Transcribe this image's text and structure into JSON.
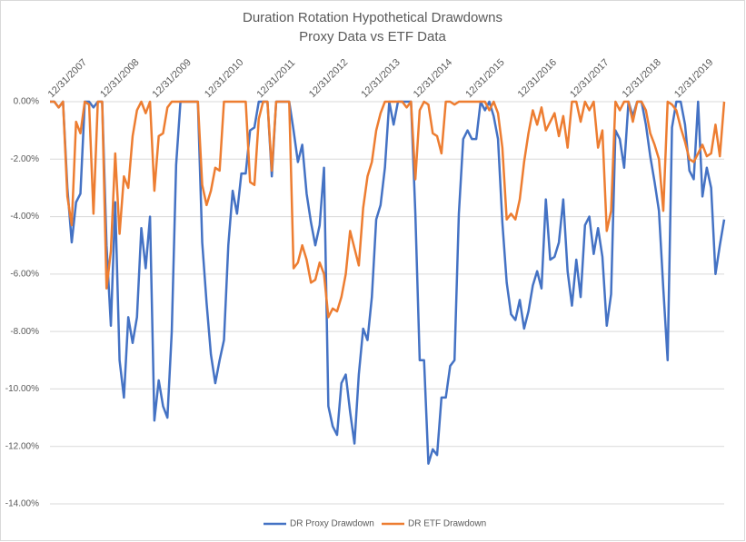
{
  "chart_data": {
    "type": "line",
    "title": "Duration Rotation Hypothetical Drawdowns",
    "subtitle": "Proxy Data vs ETF Data",
    "categories": [
      "12/31/2007",
      null,
      null,
      null,
      null,
      null,
      null,
      null,
      null,
      null,
      null,
      null,
      "12/31/2008",
      null,
      null,
      null,
      null,
      null,
      null,
      null,
      null,
      null,
      null,
      null,
      "12/31/2009",
      null,
      null,
      null,
      null,
      null,
      null,
      null,
      null,
      null,
      null,
      null,
      "12/31/2010",
      null,
      null,
      null,
      null,
      null,
      null,
      null,
      null,
      null,
      null,
      null,
      "12/31/2011",
      null,
      null,
      null,
      null,
      null,
      null,
      null,
      null,
      null,
      null,
      null,
      "12/31/2012",
      null,
      null,
      null,
      null,
      null,
      null,
      null,
      null,
      null,
      null,
      null,
      "12/31/2013",
      null,
      null,
      null,
      null,
      null,
      null,
      null,
      null,
      null,
      null,
      null,
      "12/31/2014",
      null,
      null,
      null,
      null,
      null,
      null,
      null,
      null,
      null,
      null,
      null,
      "12/31/2015",
      null,
      null,
      null,
      null,
      null,
      null,
      null,
      null,
      null,
      null,
      null,
      "12/31/2016",
      null,
      null,
      null,
      null,
      null,
      null,
      null,
      null,
      null,
      null,
      null,
      "12/31/2017",
      null,
      null,
      null,
      null,
      null,
      null,
      null,
      null,
      null,
      null,
      null,
      "12/31/2018",
      null,
      null,
      null,
      null,
      null,
      null,
      null,
      null,
      null,
      null,
      null,
      "12/31/2019",
      null,
      null,
      null,
      null,
      null,
      null,
      null,
      null,
      null,
      null,
      null
    ],
    "series": [
      {
        "name": "DR Proxy Drawdown",
        "color": "#4472c4",
        "values": [
          0,
          0,
          -0.2,
          0,
          -3.0,
          -4.9,
          -3.5,
          -3.2,
          0,
          0,
          -0.2,
          0,
          0,
          -5,
          -7.8,
          -3.5,
          -9,
          -10.3,
          -7.5,
          -8.4,
          -7.5,
          -4.4,
          -5.8,
          -4.0,
          -11.1,
          -9.7,
          -10.6,
          -11.0,
          -8,
          -2.2,
          0,
          0,
          0,
          0,
          0,
          -4.9,
          -7,
          -8.8,
          -9.8,
          -9,
          -8.3,
          -5,
          -3.1,
          -3.9,
          -2.5,
          -2.5,
          -1,
          -0.9,
          0,
          0,
          0,
          -2.6,
          0,
          0,
          0,
          0,
          -1,
          -2.1,
          -1.5,
          -3.2,
          -4.2,
          -5.0,
          -4.3,
          -2.3,
          -10.6,
          -11.3,
          -11.6,
          -9.8,
          -9.5,
          -10.8,
          -11.9,
          -9.5,
          -7.9,
          -8.3,
          -6.8,
          -4.1,
          -3.6,
          -2.3,
          0,
          -0.8,
          0,
          0,
          0,
          0,
          -3.9,
          -9,
          -9,
          -12.6,
          -12.1,
          -12.3,
          -10.3,
          -10.3,
          -9.2,
          -9,
          -3.9,
          -1.3,
          -1,
          -1.3,
          -1.3,
          0,
          -0.3,
          0,
          -0.5,
          -1.3,
          -4.2,
          -6.3,
          -7.4,
          -7.6,
          -6.9,
          -7.9,
          -7.3,
          -6.4,
          -5.9,
          -6.5,
          -3.4,
          -5.5,
          -5.4,
          -4.9,
          -3.4,
          -5.9,
          -7.1,
          -5.5,
          -6.8,
          -4.3,
          -4,
          -5.3,
          -4.4,
          -5.4,
          -7.8,
          -6.7,
          -1,
          -1.3,
          -2.3,
          0,
          -0.5,
          0,
          0,
          -0.8,
          -1.9,
          -2.8,
          -3.8,
          -6.5,
          -9,
          -0.9,
          0,
          0,
          -0.8,
          -2.4,
          -2.7,
          0,
          -3.3,
          -2.3,
          -3.0,
          -6,
          -5.0,
          -4.1
        ]
      },
      {
        "name": "DR ETF Drawdown",
        "color": "#ed7d31",
        "values": [
          0,
          0,
          -0.2,
          0,
          -3.3,
          -4.3,
          -0.7,
          -1.1,
          0,
          -0.1,
          -3.9,
          0,
          0,
          -6.5,
          -5.2,
          -1.8,
          -4.6,
          -2.6,
          -3.0,
          -1.2,
          -0.3,
          0,
          -0.4,
          0,
          -3.1,
          -1.2,
          -1.1,
          -0.2,
          0,
          0,
          0,
          0,
          0,
          0,
          0,
          -2.9,
          -3.6,
          -3.1,
          -2.3,
          -2.4,
          0,
          0,
          0,
          0,
          0,
          0,
          -2.8,
          -2.9,
          -0.6,
          0,
          0,
          -2.4,
          0,
          0,
          0,
          0,
          -5.8,
          -5.6,
          -5.0,
          -5.5,
          -6.3,
          -6.2,
          -5.6,
          -6.0,
          -7.5,
          -7.2,
          -7.3,
          -6.8,
          -6.0,
          -4.5,
          -5.1,
          -5.7,
          -3.7,
          -2.6,
          -2.1,
          -1.0,
          -0.4,
          0,
          0,
          0,
          0,
          0,
          -0.2,
          0,
          -2.7,
          -0.3,
          0,
          -0.1,
          -1.1,
          -1.2,
          -1.8,
          0,
          0,
          -0.1,
          0,
          0,
          0,
          0,
          0,
          0,
          0,
          -0.3,
          0,
          -0.4,
          -1.6,
          -4.1,
          -3.9,
          -4.1,
          -3.4,
          -2.1,
          -1.1,
          -0.3,
          -0.8,
          -0.2,
          -1.0,
          -0.7,
          -0.4,
          -1.2,
          -0.5,
          -1.6,
          0,
          0,
          -0.7,
          0,
          -0.3,
          0,
          -1.6,
          -1.0,
          -4.5,
          -3.8,
          0,
          -0.3,
          0,
          0,
          -0.7,
          0,
          0,
          -0.3,
          -1.1,
          -1.5,
          -2.0,
          -3.8,
          0,
          -0.1,
          -0.3,
          -0.9,
          -1.4,
          -2.0,
          -2.1,
          -1.8,
          -1.5,
          -1.9,
          -1.8,
          -0.8,
          -1.9,
          0
        ]
      }
    ],
    "ylim": [
      -14,
      0
    ],
    "yticks": [
      {
        "value": 0,
        "label": "0.00%"
      },
      {
        "value": -2,
        "label": "-2.00%"
      },
      {
        "value": -4,
        "label": "-4.00%"
      },
      {
        "value": -6,
        "label": "-6.00%"
      },
      {
        "value": -8,
        "label": "-8.00%"
      },
      {
        "value": -10,
        "label": "-10.00%"
      },
      {
        "value": -12,
        "label": "-12.00%"
      },
      {
        "value": -14,
        "label": "-14.00%"
      }
    ],
    "grid": true,
    "legend": "bottom"
  }
}
